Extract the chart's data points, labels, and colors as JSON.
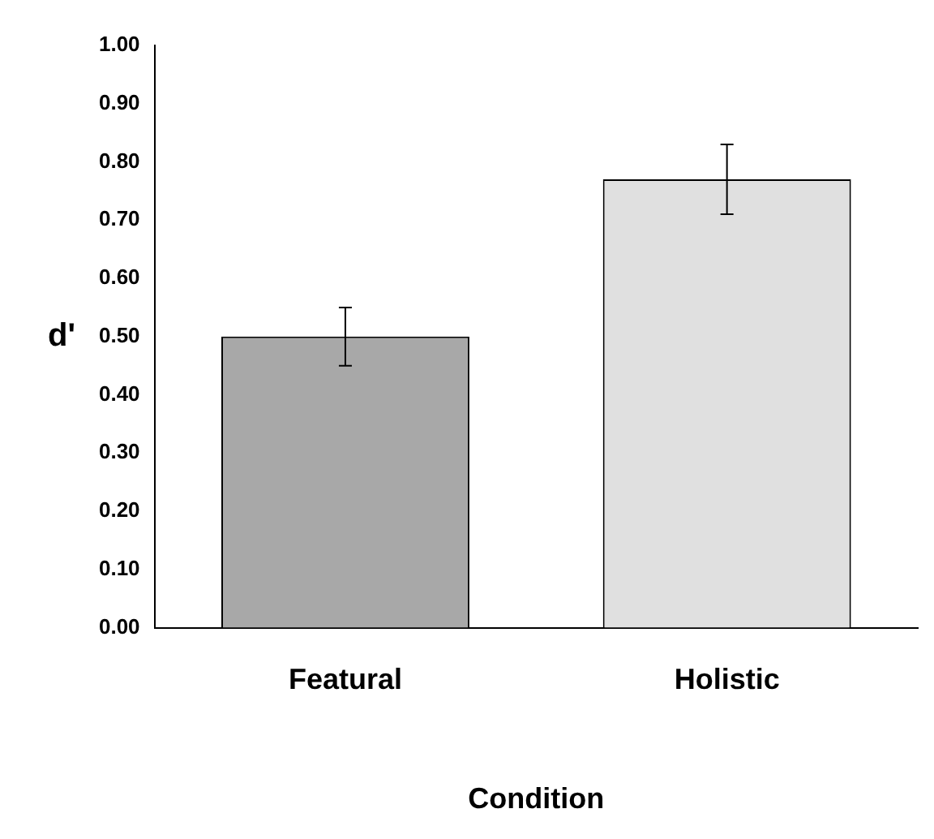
{
  "chart_data": {
    "type": "bar",
    "xlabel": "Condition",
    "ylabel": "d'",
    "categories": [
      "Featural",
      "Holistic"
    ],
    "values": [
      0.5,
      0.77
    ],
    "errors": [
      0.05,
      0.06
    ],
    "colors": [
      "#a8a8a8",
      "#e0e0e0"
    ],
    "ylim": [
      0,
      1
    ],
    "yticks": [
      {
        "value": 0,
        "label": "0.00"
      },
      {
        "value": 0.1,
        "label": "0.10"
      },
      {
        "value": 0.2,
        "label": "0.20"
      },
      {
        "value": 0.3,
        "label": "0.30"
      },
      {
        "value": 0.4,
        "label": "0.40"
      },
      {
        "value": 0.5,
        "label": "0.50"
      },
      {
        "value": 0.6,
        "label": "0.60"
      },
      {
        "value": 0.7,
        "label": "0.70"
      },
      {
        "value": 0.8,
        "label": "0.80"
      },
      {
        "value": 0.9,
        "label": "0.90"
      },
      {
        "value": 1,
        "label": "1.00"
      }
    ],
    "grid": false,
    "legend": false
  }
}
